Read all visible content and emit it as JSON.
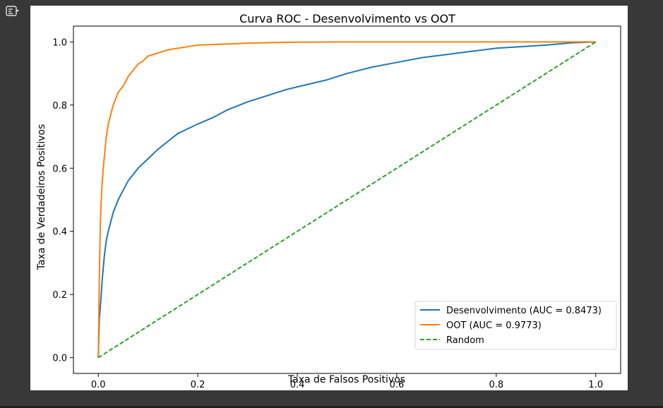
{
  "ui": {
    "toggle_icon": "output-toggle-icon",
    "colors": {
      "background": "#383838",
      "figure_background": "#ffffff"
    }
  },
  "chart_data": {
    "type": "line",
    "title": "Curva ROC - Desenvolvimento vs OOT",
    "xlabel": "Taxa de Falsos Positivos",
    "ylabel": "Taxa de Verdadeiros Positivos",
    "xlim": [
      -0.05,
      1.05
    ],
    "ylim": [
      -0.05,
      1.05
    ],
    "xticks": [
      0.0,
      0.2,
      0.4,
      0.6,
      0.8,
      1.0
    ],
    "yticks": [
      0.0,
      0.2,
      0.4,
      0.6,
      0.8,
      1.0
    ],
    "xtick_labels": [
      "0.0",
      "0.2",
      "0.4",
      "0.6",
      "0.8",
      "1.0"
    ],
    "ytick_labels": [
      "0.0",
      "0.2",
      "0.4",
      "0.6",
      "0.8",
      "1.0"
    ],
    "grid": false,
    "legend_position": "lower-right",
    "series": [
      {
        "name": "Desenvolvimento (AUC = 0.8473)",
        "color": "#1f77b4",
        "style": "solid",
        "x": [
          0.0,
          0.002,
          0.005,
          0.008,
          0.012,
          0.016,
          0.02,
          0.025,
          0.03,
          0.04,
          0.05,
          0.06,
          0.07,
          0.08,
          0.1,
          0.12,
          0.14,
          0.16,
          0.18,
          0.2,
          0.23,
          0.26,
          0.3,
          0.34,
          0.38,
          0.42,
          0.46,
          0.5,
          0.55,
          0.6,
          0.65,
          0.7,
          0.75,
          0.8,
          0.85,
          0.9,
          0.95,
          1.0
        ],
        "y": [
          0.0,
          0.12,
          0.18,
          0.25,
          0.32,
          0.37,
          0.4,
          0.43,
          0.46,
          0.5,
          0.53,
          0.56,
          0.58,
          0.6,
          0.63,
          0.66,
          0.685,
          0.71,
          0.725,
          0.74,
          0.76,
          0.785,
          0.81,
          0.83,
          0.85,
          0.865,
          0.88,
          0.9,
          0.92,
          0.935,
          0.95,
          0.96,
          0.97,
          0.98,
          0.985,
          0.99,
          0.997,
          1.0
        ]
      },
      {
        "name": "OOT (AUC = 0.9773)",
        "color": "#ff7f0e",
        "style": "solid",
        "x": [
          0.0,
          0.002,
          0.004,
          0.006,
          0.008,
          0.01,
          0.013,
          0.016,
          0.02,
          0.025,
          0.03,
          0.035,
          0.04,
          0.05,
          0.06,
          0.07,
          0.08,
          0.09,
          0.1,
          0.12,
          0.14,
          0.16,
          0.18,
          0.2,
          0.25,
          0.3,
          0.35,
          0.4,
          0.5,
          0.6,
          0.7,
          0.8,
          0.9,
          1.0
        ],
        "y": [
          0.0,
          0.25,
          0.42,
          0.5,
          0.56,
          0.6,
          0.65,
          0.7,
          0.74,
          0.77,
          0.8,
          0.82,
          0.84,
          0.86,
          0.89,
          0.91,
          0.93,
          0.94,
          0.955,
          0.965,
          0.975,
          0.98,
          0.985,
          0.99,
          0.993,
          0.996,
          0.998,
          0.999,
          1.0,
          1.0,
          1.0,
          1.0,
          1.0,
          1.0
        ]
      },
      {
        "name": "Random",
        "color": "#2ca02c",
        "style": "dashed",
        "x": [
          0.0,
          1.0
        ],
        "y": [
          0.0,
          1.0
        ]
      }
    ]
  }
}
